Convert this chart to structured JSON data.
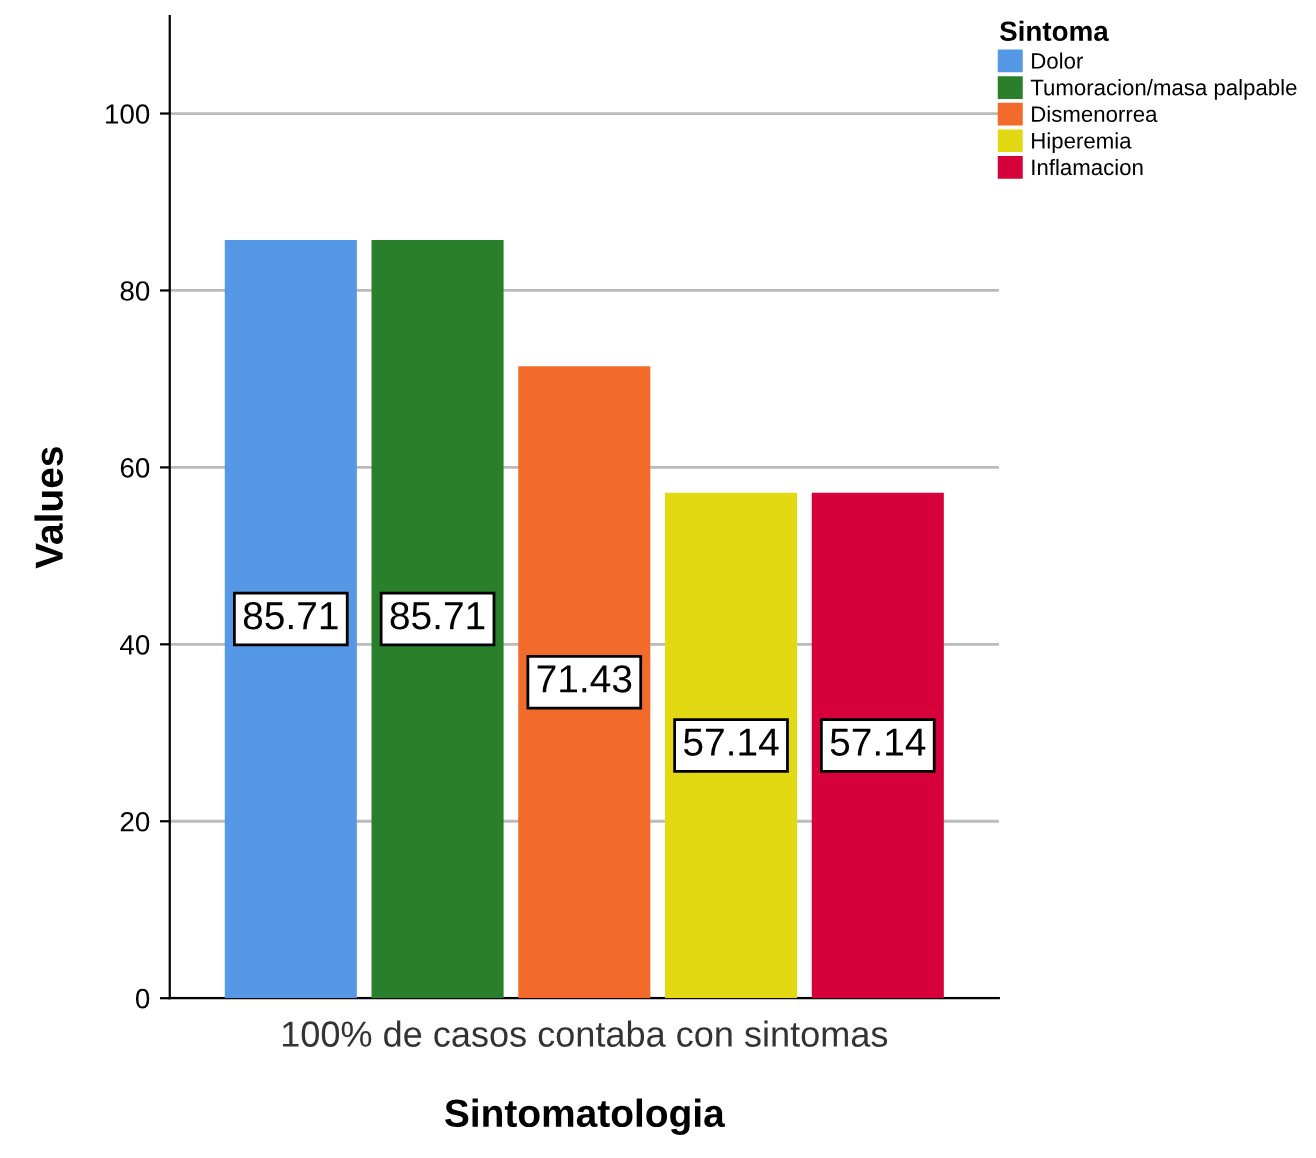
{
  "chart_data": {
    "type": "bar",
    "xlabel": "Sintomatologia",
    "ylabel": "Values",
    "legend_title": "Sintoma",
    "categories": [
      "100% de casos contaba con sintomas"
    ],
    "series": [
      {
        "name": "Dolor",
        "color": "#5599e6",
        "values": [
          85.71
        ]
      },
      {
        "name": "Tumoracion/masa palpable",
        "color": "#2a7f2a",
        "values": [
          85.71
        ]
      },
      {
        "name": "Dismenorrea",
        "color": "#f26b2a",
        "values": [
          71.43
        ]
      },
      {
        "name": "Hiperemia",
        "color": "#e3d912",
        "values": [
          57.14
        ]
      },
      {
        "name": "Inflamacion",
        "color": "#d6003a",
        "values": [
          57.14
        ]
      }
    ],
    "ylim": [
      0,
      111
    ],
    "yticks": [
      0,
      20,
      40,
      60,
      80,
      100
    ],
    "grid": "y",
    "legend": "top right",
    "data_labels": true
  }
}
